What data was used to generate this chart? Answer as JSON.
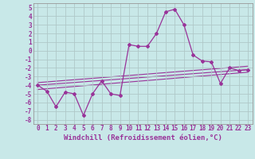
{
  "background_color": "#c8e8e8",
  "grid_color": "#aaaaaa",
  "line_color": "#993399",
  "xlabel": "Windchill (Refroidissement éolien,°C)",
  "xlim": [
    -0.5,
    23.5
  ],
  "ylim": [
    -8.5,
    5.5
  ],
  "xticks": [
    0,
    1,
    2,
    3,
    4,
    5,
    6,
    7,
    8,
    9,
    10,
    11,
    12,
    13,
    14,
    15,
    16,
    17,
    18,
    19,
    20,
    21,
    22,
    23
  ],
  "yticks": [
    -8,
    -7,
    -6,
    -5,
    -4,
    -3,
    -2,
    -1,
    0,
    1,
    2,
    3,
    4,
    5
  ],
  "main_x": [
    0,
    1,
    2,
    3,
    4,
    5,
    6,
    7,
    8,
    9,
    10,
    11,
    12,
    13,
    14,
    15,
    16,
    17,
    18,
    19,
    20,
    21,
    22,
    23
  ],
  "main_y": [
    -4.0,
    -4.7,
    -6.5,
    -4.8,
    -5.0,
    -7.5,
    -5.0,
    -3.5,
    -5.0,
    -5.2,
    0.7,
    0.5,
    0.5,
    2.0,
    4.5,
    4.8,
    3.0,
    -0.5,
    -1.2,
    -1.3,
    -3.8,
    -2.0,
    -2.3,
    -2.2
  ],
  "reg_lines": [
    {
      "x0": 0,
      "y0": -4.0,
      "x1": 23,
      "y1": -2.2
    },
    {
      "x0": 0,
      "y0": -3.7,
      "x1": 23,
      "y1": -1.8
    },
    {
      "x0": 0,
      "y0": -4.5,
      "x1": 23,
      "y1": -2.5
    }
  ],
  "tick_fontsize": 5.5,
  "xlabel_fontsize": 6.5
}
